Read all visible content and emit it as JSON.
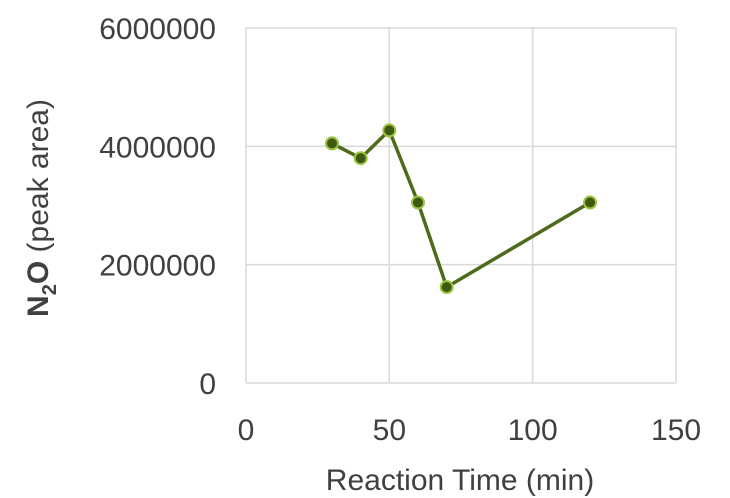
{
  "chart_data": {
    "type": "line",
    "x": [
      30,
      40,
      50,
      60,
      70,
      120
    ],
    "series": [
      {
        "values": [
          4050000,
          3800000,
          4270000,
          3050000,
          1620000,
          3050000
        ]
      }
    ],
    "xlabel": "Reaction Time (min)",
    "ylabel": {
      "bold_main": "N",
      "subscript": "2",
      "bold_tail": "O",
      "rest": " (peak area)"
    },
    "xlim": [
      0,
      150
    ],
    "ylim": [
      0,
      6000000
    ],
    "x_ticks": [
      "0",
      "50",
      "100",
      "150"
    ],
    "y_ticks": [
      "0",
      "2000000",
      "4000000",
      "6000000"
    ],
    "grid": true,
    "colors": {
      "line": "#4d6b1a",
      "marker_fill": "#3d5a10",
      "marker_edge": "#9bc33d",
      "grid": "#d9d9d9",
      "text": "#404040"
    }
  }
}
